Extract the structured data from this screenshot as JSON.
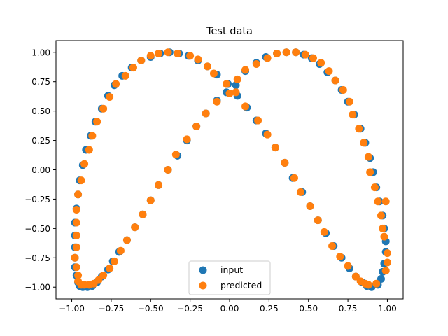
{
  "chart_data": {
    "type": "scatter",
    "title": "Test data",
    "xlabel": "",
    "ylabel": "",
    "xlim": [
      -1.1,
      1.1
    ],
    "ylim": [
      -1.1,
      1.1
    ],
    "x_ticks": [
      -1.0,
      -0.75,
      -0.5,
      -0.25,
      0.0,
      0.25,
      0.5,
      0.75,
      1.0
    ],
    "x_tick_labels": [
      "−1.00",
      "−0.75",
      "−0.50",
      "−0.25",
      "0.00",
      "0.25",
      "0.50",
      "0.75",
      "1.00"
    ],
    "y_ticks": [
      -1.0,
      -0.75,
      -0.5,
      -0.25,
      0.0,
      0.25,
      0.5,
      0.75,
      1.0
    ],
    "y_tick_labels": [
      "−1.00",
      "−0.75",
      "−0.50",
      "−0.25",
      "0.00",
      "0.25",
      "0.50",
      "0.75",
      "1.00"
    ],
    "grid": false,
    "legend_position": "bottom-center",
    "series": [
      {
        "name": "input",
        "color": "#1f77b4",
        "points": [
          [
            -0.98,
            -0.56
          ],
          [
            -0.98,
            -0.66
          ],
          [
            -0.98,
            -0.75
          ],
          [
            -0.98,
            -0.83
          ],
          [
            -0.97,
            -0.9
          ],
          [
            -0.96,
            -0.96
          ],
          [
            -0.95,
            -0.99
          ],
          [
            -0.93,
            -1.0
          ],
          [
            -0.9,
            -1.0
          ],
          [
            -0.87,
            -0.99
          ],
          [
            -0.84,
            -0.96
          ],
          [
            -0.81,
            -0.91
          ],
          [
            -0.77,
            -0.85
          ],
          [
            -0.74,
            -0.78
          ],
          [
            -0.7,
            -0.7
          ],
          [
            -0.65,
            -0.6
          ],
          [
            -0.6,
            -0.49
          ],
          [
            -0.55,
            -0.38
          ],
          [
            -0.5,
            -0.26
          ],
          [
            -0.45,
            -0.13
          ],
          [
            -0.39,
            0.0
          ],
          [
            -0.33,
            0.12
          ],
          [
            -0.27,
            0.25
          ],
          [
            -0.21,
            0.37
          ],
          [
            -0.15,
            0.48
          ],
          [
            -0.08,
            0.59
          ],
          [
            -0.02,
            0.66
          ],
          [
            0.04,
            0.72
          ],
          [
            0.1,
            0.84
          ],
          [
            0.17,
            0.91
          ],
          [
            0.23,
            0.96
          ],
          [
            0.3,
            0.99
          ],
          [
            0.36,
            1.0
          ],
          [
            0.42,
            1.0
          ],
          [
            0.47,
            0.98
          ],
          [
            0.52,
            0.95
          ],
          [
            0.57,
            0.9
          ],
          [
            0.62,
            0.83
          ],
          [
            0.67,
            0.76
          ],
          [
            0.71,
            0.68
          ],
          [
            0.75,
            0.58
          ],
          [
            0.79,
            0.47
          ],
          [
            0.83,
            0.35
          ],
          [
            0.86,
            0.23
          ],
          [
            0.89,
            0.1
          ],
          [
            0.91,
            -0.02
          ],
          [
            0.93,
            -0.15
          ],
          [
            0.95,
            -0.27
          ],
          [
            0.97,
            -0.39
          ],
          [
            0.98,
            -0.5
          ],
          [
            0.99,
            -0.61
          ],
          [
            0.99,
            -0.7
          ],
          [
            0.98,
            -0.8
          ],
          [
            0.97,
            -0.87
          ],
          [
            0.96,
            -0.93
          ],
          [
            0.94,
            -0.98
          ],
          [
            0.9,
            -1.0
          ],
          [
            0.87,
            -0.99
          ],
          [
            0.84,
            -0.96
          ],
          [
            0.8,
            -0.91
          ],
          [
            0.76,
            -0.84
          ],
          [
            0.71,
            -0.75
          ],
          [
            0.66,
            -0.65
          ],
          [
            0.61,
            -0.54
          ],
          [
            0.56,
            -0.43
          ],
          [
            0.51,
            -0.31
          ],
          [
            0.46,
            -0.19
          ],
          [
            0.4,
            -0.07
          ],
          [
            0.35,
            0.06
          ],
          [
            0.29,
            0.19
          ],
          [
            0.23,
            0.31
          ],
          [
            0.17,
            0.42
          ],
          [
            0.11,
            0.53
          ],
          [
            0.05,
            0.63
          ],
          [
            -0.01,
            0.73
          ],
          [
            -0.08,
            0.81
          ],
          [
            -0.14,
            0.88
          ],
          [
            -0.2,
            0.93
          ],
          [
            -0.26,
            0.97
          ],
          [
            -0.32,
            0.99
          ],
          [
            -0.38,
            1.0
          ],
          [
            -0.44,
            0.99
          ],
          [
            -0.5,
            0.96
          ],
          [
            -0.56,
            0.93
          ],
          [
            -0.62,
            0.87
          ],
          [
            -0.68,
            0.8
          ],
          [
            -0.73,
            0.72
          ],
          [
            -0.77,
            0.63
          ],
          [
            -0.81,
            0.52
          ],
          [
            -0.85,
            0.41
          ],
          [
            -0.88,
            0.29
          ],
          [
            -0.91,
            0.17
          ],
          [
            -0.93,
            0.04
          ],
          [
            -0.95,
            -0.09
          ],
          [
            -0.96,
            -0.21
          ],
          [
            -0.97,
            -0.33
          ],
          [
            -0.98,
            -0.45
          ]
        ]
      },
      {
        "name": "predicted",
        "color": "#ff7f0e",
        "points": [
          [
            -0.97,
            -0.56
          ],
          [
            -0.97,
            -0.66
          ],
          [
            -0.98,
            -0.75
          ],
          [
            -0.97,
            -0.83
          ],
          [
            -0.96,
            -0.9
          ],
          [
            -0.96,
            -0.95
          ],
          [
            -0.94,
            -0.98
          ],
          [
            -0.92,
            -0.98
          ],
          [
            -0.89,
            -0.98
          ],
          [
            -0.86,
            -0.97
          ],
          [
            -0.83,
            -0.94
          ],
          [
            -0.8,
            -0.9
          ],
          [
            -0.76,
            -0.84
          ],
          [
            -0.73,
            -0.78
          ],
          [
            -0.69,
            -0.69
          ],
          [
            -0.65,
            -0.6
          ],
          [
            -0.6,
            -0.49
          ],
          [
            -0.55,
            -0.38
          ],
          [
            -0.5,
            -0.26
          ],
          [
            -0.45,
            -0.13
          ],
          [
            -0.39,
            0.0
          ],
          [
            -0.34,
            0.13
          ],
          [
            -0.27,
            0.26
          ],
          [
            -0.21,
            0.37
          ],
          [
            -0.15,
            0.48
          ],
          [
            -0.08,
            0.58
          ],
          [
            0.0,
            0.65
          ],
          [
            0.05,
            0.77
          ],
          [
            0.1,
            0.85
          ],
          [
            0.17,
            0.9
          ],
          [
            0.24,
            0.95
          ],
          [
            0.3,
            0.99
          ],
          [
            0.36,
            1.0
          ],
          [
            0.42,
            1.0
          ],
          [
            0.48,
            0.98
          ],
          [
            0.53,
            0.95
          ],
          [
            0.58,
            0.91
          ],
          [
            0.63,
            0.84
          ],
          [
            0.67,
            0.76
          ],
          [
            0.72,
            0.68
          ],
          [
            0.76,
            0.58
          ],
          [
            0.78,
            0.47
          ],
          [
            0.82,
            0.35
          ],
          [
            0.85,
            0.23
          ],
          [
            0.88,
            0.11
          ],
          [
            0.89,
            -0.02
          ],
          [
            0.92,
            -0.15
          ],
          [
            0.94,
            -0.27
          ],
          [
            0.96,
            -0.39
          ],
          [
            0.97,
            -0.5
          ],
          [
            0.98,
            -0.57
          ],
          [
            1.0,
            -0.71
          ],
          [
            1.0,
            -0.79
          ],
          [
            0.99,
            -0.86
          ],
          [
            0.99,
            -0.27
          ],
          [
            0.93,
            -0.97
          ],
          [
            0.88,
            -0.98
          ],
          [
            0.86,
            -0.97
          ],
          [
            0.83,
            -0.95
          ],
          [
            0.8,
            -0.91
          ],
          [
            0.75,
            -0.82
          ],
          [
            0.7,
            -0.74
          ],
          [
            0.65,
            -0.65
          ],
          [
            0.6,
            -0.53
          ],
          [
            0.56,
            -0.43
          ],
          [
            0.51,
            -0.31
          ],
          [
            0.45,
            -0.19
          ],
          [
            0.41,
            -0.07
          ],
          [
            0.35,
            0.06
          ],
          [
            0.29,
            0.19
          ],
          [
            0.24,
            0.3
          ],
          [
            0.18,
            0.42
          ],
          [
            0.1,
            0.54
          ],
          [
            0.04,
            0.66
          ],
          [
            -0.02,
            0.73
          ],
          [
            -0.1,
            0.82
          ],
          [
            -0.14,
            0.88
          ],
          [
            -0.2,
            0.94
          ],
          [
            -0.25,
            0.97
          ],
          [
            -0.33,
            0.99
          ],
          [
            -0.39,
            1.0
          ],
          [
            -0.45,
            0.99
          ],
          [
            -0.5,
            0.97
          ],
          [
            -0.56,
            0.93
          ],
          [
            -0.61,
            0.87
          ],
          [
            -0.66,
            0.8
          ],
          [
            -0.72,
            0.73
          ],
          [
            -0.76,
            0.62
          ],
          [
            -0.8,
            0.52
          ],
          [
            -0.84,
            0.41
          ],
          [
            -0.87,
            0.29
          ],
          [
            -0.89,
            0.17
          ],
          [
            -0.92,
            0.05
          ],
          [
            -0.94,
            -0.09
          ],
          [
            -0.96,
            -0.21
          ],
          [
            -0.97,
            -0.34
          ],
          [
            -0.97,
            -0.45
          ]
        ]
      }
    ]
  }
}
